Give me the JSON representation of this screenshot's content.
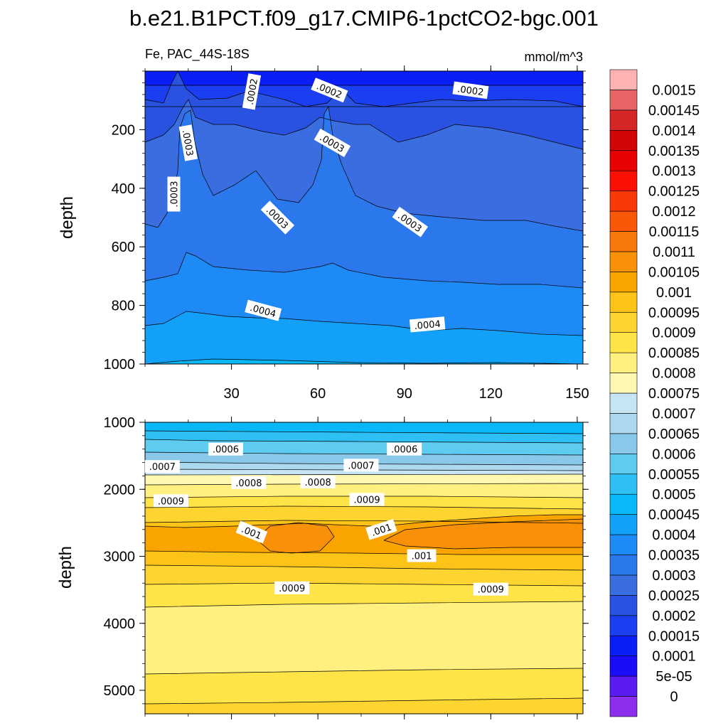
{
  "chart_data": {
    "type": "contour",
    "title": "b.e21.B1PCT.f09_g17.CMIP6-1pctCO2-bgc.001",
    "variable_label": "Fe, PAC_44S-18S",
    "units_label": "mmol/m^3",
    "xlim": [
      0,
      152
    ],
    "x_ticks": [
      30,
      60,
      90,
      120,
      150
    ],
    "colorbar": {
      "levels": [
        "0",
        "5e-05",
        "0.0001",
        "0.00015",
        "0.0002",
        "0.00025",
        "0.0003",
        "0.00035",
        "0.0004",
        "0.00045",
        "0.0005",
        "0.00055",
        "0.0006",
        "0.00065",
        "0.0007",
        "0.00075",
        "0.0008",
        "0.00085",
        "0.0009",
        "0.00095",
        "0.001",
        "0.00105",
        "0.0011",
        "0.00115",
        "0.0012",
        "0.00125",
        "0.0013",
        "0.00135",
        "0.0014",
        "0.00145",
        "0.0015"
      ],
      "colors": [
        "#8c2eeb",
        "#5a1cf0",
        "#1a0cf5",
        "#0a1ef5",
        "#1a3ef0",
        "#2a52e0",
        "#3a6ee0",
        "#2a78ec",
        "#1e8af5",
        "#12a0f8",
        "#08b8f8",
        "#2ec0f4",
        "#5ecbf0",
        "#8ac8ea",
        "#acd8f0",
        "#c6e4f4",
        "#fff8b0",
        "#fff080",
        "#ffe448",
        "#fed530",
        "#fcc418",
        "#faa400",
        "#f89008",
        "#f8780a",
        "#f85808",
        "#f83a08",
        "#fa1005",
        "#e80202",
        "#d20606",
        "#d42626",
        "#e86464",
        "#ffb2b2"
      ]
    },
    "panels": [
      {
        "name": "upper",
        "ylabel": "depth",
        "ylim": [
          0,
          1000
        ],
        "y_ticks": [
          200,
          400,
          600,
          800,
          1000
        ],
        "contour_labels": [
          {
            "text": ".0002",
            "x": 37,
            "y": 70,
            "angle": -80
          },
          {
            "text": ".0002",
            "x": 64,
            "y": 65,
            "angle": 22
          },
          {
            "text": ".0002",
            "x": 113,
            "y": 65,
            "angle": 8
          },
          {
            "text": ".0003",
            "x": 15,
            "y": 245,
            "angle": 80
          },
          {
            "text": ".0003",
            "x": 10,
            "y": 420,
            "angle": -90
          },
          {
            "text": ".0003",
            "x": 65,
            "y": 245,
            "angle": 30
          },
          {
            "text": ".0003",
            "x": 46,
            "y": 500,
            "angle": 45
          },
          {
            "text": ".0003",
            "x": 92,
            "y": 515,
            "angle": 35
          },
          {
            "text": ".0004",
            "x": 41,
            "y": 817,
            "angle": 15
          },
          {
            "text": ".0004",
            "x": 98,
            "y": 865,
            "angle": -5
          }
        ]
      },
      {
        "name": "lower",
        "ylabel": "depth",
        "ylim": [
          1000,
          5350
        ],
        "y_ticks": [
          1000,
          2000,
          3000,
          4000,
          5000
        ],
        "contour_labels": [
          {
            "text": ".0006",
            "x": 28,
            "y": 1400,
            "angle": 0
          },
          {
            "text": ".0006",
            "x": 90,
            "y": 1400,
            "angle": 0
          },
          {
            "text": ".0007",
            "x": 6,
            "y": 1660,
            "angle": 0
          },
          {
            "text": ".0007",
            "x": 75,
            "y": 1640,
            "angle": 0
          },
          {
            "text": ".0008",
            "x": 36,
            "y": 1900,
            "angle": 0
          },
          {
            "text": ".0008",
            "x": 60,
            "y": 1890,
            "angle": 0
          },
          {
            "text": ".0009",
            "x": 9,
            "y": 2170,
            "angle": 0
          },
          {
            "text": ".0009",
            "x": 77,
            "y": 2150,
            "angle": 0
          },
          {
            "text": ".0009",
            "x": 51,
            "y": 3470,
            "angle": 0
          },
          {
            "text": ".0009",
            "x": 120,
            "y": 3490,
            "angle": 0
          },
          {
            "text": ".001",
            "x": 37,
            "y": 2640,
            "angle": 22
          },
          {
            "text": ".001",
            "x": 82,
            "y": 2600,
            "angle": -18
          },
          {
            "text": ".001",
            "x": 96,
            "y": 2990,
            "angle": 0
          }
        ]
      }
    ]
  }
}
